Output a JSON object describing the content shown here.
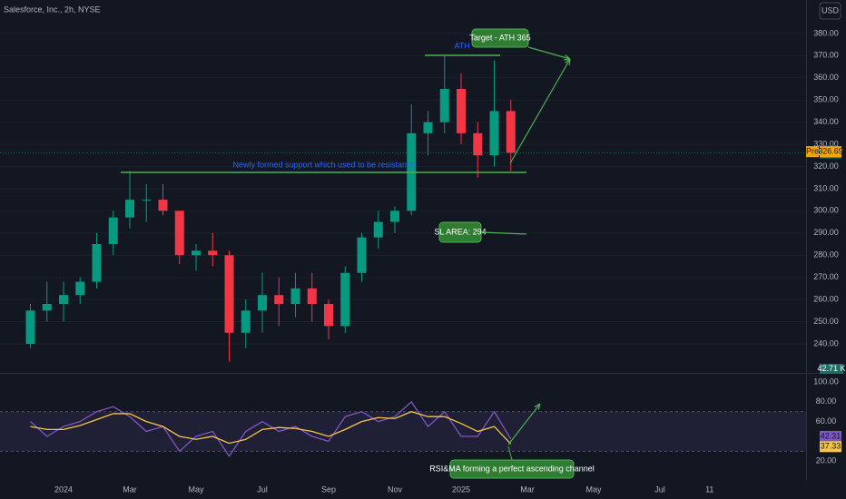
{
  "header": {
    "symbol": "Salesforce, Inc., 2h, NYSE",
    "currency": "USD"
  },
  "chart_data": [
    {
      "type": "candlestick",
      "categories": [
        null,
        null,
        null,
        "2024",
        null,
        null,
        null,
        "Mar",
        null,
        null,
        null,
        "May",
        null,
        null,
        null,
        "Jul",
        null,
        null,
        null,
        "Sep",
        null,
        null,
        null,
        "Nov",
        null,
        null,
        null,
        "2025",
        null,
        null,
        null,
        "Mar",
        null,
        null,
        null,
        "May",
        null,
        null,
        null,
        "Jul",
        null,
        null,
        "11",
        null,
        null,
        null,
        null,
        null
      ],
      "open": [
        null,
        240,
        255,
        258,
        262,
        268,
        285,
        297,
        305,
        305,
        300,
        280,
        282,
        280,
        245,
        255,
        262,
        258,
        265,
        258,
        248,
        272,
        288,
        295,
        300,
        335,
        340,
        355,
        335,
        325,
        345,
        null,
        null,
        null,
        null,
        null,
        null,
        null,
        null,
        null,
        null,
        null,
        null,
        null,
        null,
        null,
        null,
        null
      ],
      "high": [
        null,
        258,
        268,
        268,
        270,
        290,
        300,
        318,
        312,
        312,
        300,
        285,
        290,
        282,
        260,
        272,
        270,
        272,
        272,
        260,
        275,
        290,
        300,
        302,
        348,
        345,
        370,
        362,
        340,
        368,
        350,
        null,
        null,
        null,
        null,
        null,
        null,
        null,
        null,
        null,
        null,
        null,
        null,
        null,
        null,
        null,
        null,
        null
      ],
      "low": [
        null,
        238,
        250,
        250,
        258,
        265,
        280,
        292,
        295,
        298,
        276,
        273,
        275,
        232,
        238,
        245,
        248,
        252,
        250,
        242,
        245,
        268,
        283,
        290,
        298,
        325,
        335,
        330,
        315,
        320,
        318,
        null,
        null,
        null,
        null,
        null,
        null,
        null,
        null,
        null,
        null,
        null,
        null,
        null,
        null,
        null,
        null,
        null
      ],
      "close": [
        null,
        255,
        258,
        262,
        268,
        285,
        297,
        305,
        305,
        300,
        280,
        282,
        280,
        245,
        255,
        262,
        258,
        265,
        258,
        248,
        272,
        288,
        295,
        300,
        335,
        340,
        355,
        335,
        325,
        345,
        326.17,
        null,
        null,
        null,
        null,
        null,
        null,
        null,
        null,
        null,
        null,
        null,
        null,
        null,
        null,
        null,
        null,
        null
      ],
      "up_color": "#089981",
      "down_color": "#f23645",
      "ylim": [
        227.3,
        395.1
      ],
      "yticks": [
        {
          "value": 380,
          "label": "380.00"
        },
        {
          "value": 370,
          "label": "370.00"
        },
        {
          "value": 360,
          "label": "360.00"
        },
        {
          "value": 350,
          "label": "350.00"
        },
        {
          "value": 340,
          "label": "340.00"
        },
        {
          "value": 330,
          "label": "330.00"
        },
        {
          "value": 320,
          "label": "320.00"
        },
        {
          "value": 310,
          "label": "310.00"
        },
        {
          "value": 300,
          "label": "300.00"
        },
        {
          "value": 290,
          "label": "290.00"
        },
        {
          "value": 280,
          "label": "280.00"
        },
        {
          "value": 270,
          "label": "270.00"
        },
        {
          "value": 260,
          "label": "260.00"
        },
        {
          "value": 250,
          "label": "250.00"
        },
        {
          "value": 240,
          "label": "240.00"
        }
      ],
      "pre_market": {
        "tag": "Pre",
        "value": 326.69
      },
      "volume_label": "42.71 K",
      "annotations": [
        "ATH",
        "Target - ATH 365",
        "Newly formed support which used to be resistance",
        "SL AREA: 294"
      ]
    },
    {
      "type": "line",
      "series": [
        {
          "color": "#7e57c2",
          "values": [
            null,
            60,
            45,
            55,
            60,
            70,
            75,
            65,
            50,
            55,
            30,
            45,
            50,
            25,
            50,
            60,
            50,
            55,
            45,
            40,
            65,
            70,
            60,
            65,
            80,
            55,
            70,
            45,
            45,
            70,
            42.31,
            null,
            null,
            null,
            null,
            null,
            null,
            null,
            null,
            null,
            null,
            null,
            null,
            null,
            null,
            null,
            null,
            null
          ]
        },
        {
          "color": "#f7c548",
          "values": [
            null,
            55,
            52,
            52,
            56,
            62,
            68,
            68,
            60,
            55,
            45,
            42,
            45,
            38,
            42,
            52,
            54,
            53,
            50,
            45,
            52,
            60,
            64,
            63,
            70,
            65,
            65,
            58,
            50,
            55,
            37.33,
            null,
            null,
            null,
            null,
            null,
            null,
            null,
            null,
            null,
            null,
            null,
            null,
            null,
            null,
            null,
            null,
            null
          ]
        }
      ],
      "ylim": [
        0,
        107.4
      ],
      "yticks": [
        {
          "value": 100,
          "label": "100.00"
        },
        {
          "value": 80,
          "label": "80.00"
        },
        {
          "value": 60,
          "label": "60.00"
        },
        {
          "value": 20,
          "label": "20.00"
        }
      ],
      "annotation": "RSI&MA forming a perfect ascending channel"
    }
  ]
}
